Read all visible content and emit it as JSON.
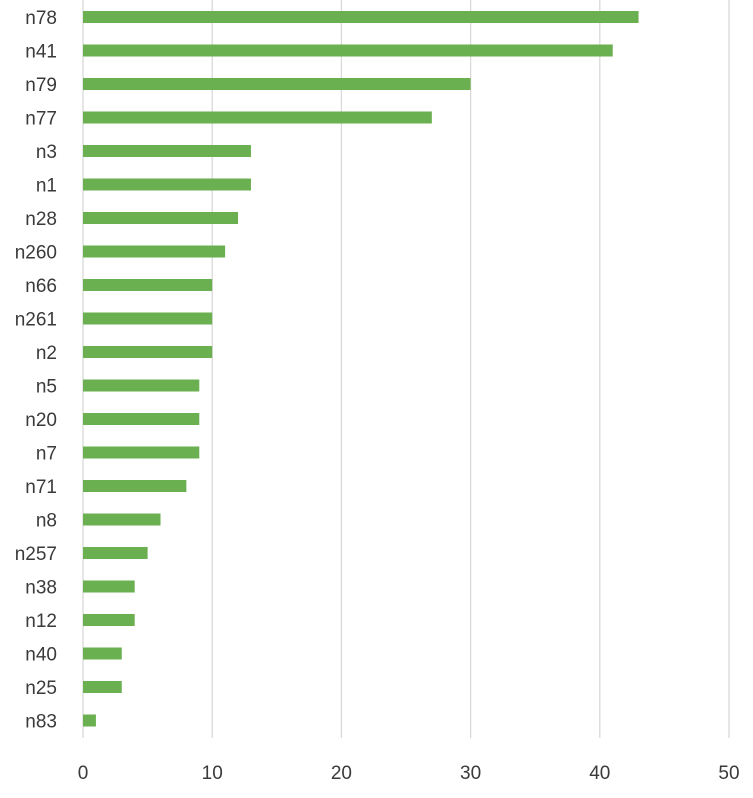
{
  "chart_data": {
    "type": "bar",
    "orientation": "horizontal",
    "categories": [
      "n78",
      "n41",
      "n79",
      "n77",
      "n3",
      "n1",
      "n28",
      "n260",
      "n66",
      "n261",
      "n2",
      "n5",
      "n20",
      "n7",
      "n71",
      "n8",
      "n257",
      "n38",
      "n12",
      "n40",
      "n25",
      "n83"
    ],
    "values": [
      43,
      41,
      30,
      27,
      13,
      13,
      12,
      11,
      10,
      10,
      10,
      9,
      9,
      9,
      8,
      6,
      5,
      4,
      4,
      3,
      3,
      1
    ],
    "xlim": [
      0,
      50
    ],
    "xticks": [
      0,
      10,
      20,
      30,
      40,
      50
    ],
    "grid": true,
    "legend": "none",
    "bar_color": "#6aaf50",
    "grid_color": "#d9d9d9"
  }
}
